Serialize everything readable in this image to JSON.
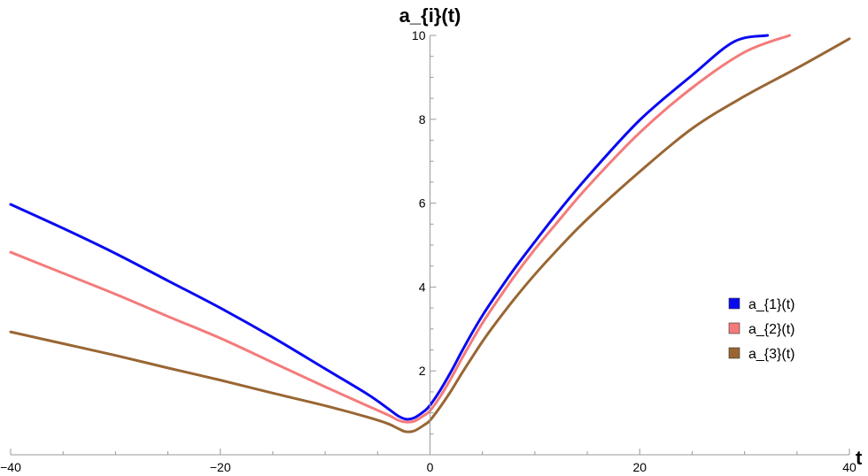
{
  "chart_data": {
    "type": "line",
    "title": "",
    "xlabel": "t",
    "ylabel": "a_{i}(t)",
    "xlim": [
      -40,
      40
    ],
    "ylim": [
      0,
      10
    ],
    "x_ticks": [
      -40,
      -20,
      0,
      20,
      40
    ],
    "x_tick_labels": [
      "−40",
      "−20",
      "0",
      "20",
      "40"
    ],
    "y_ticks": [
      2,
      4,
      6,
      8,
      10
    ],
    "y_tick_labels": [
      "2",
      "4",
      "6",
      "8",
      "10"
    ],
    "grid": false,
    "legend_position": "right",
    "series": [
      {
        "name": "a_{1}(t)",
        "color": "#0a0af0",
        "points": [
          [
            -40,
            5.97
          ],
          [
            -35,
            5.4
          ],
          [
            -30,
            4.8
          ],
          [
            -25,
            4.15
          ],
          [
            -20,
            3.5
          ],
          [
            -15,
            2.8
          ],
          [
            -10,
            2.05
          ],
          [
            -6,
            1.45
          ],
          [
            -4,
            1.1
          ],
          [
            -3,
            0.92
          ],
          [
            -2.3,
            0.85
          ],
          [
            -1.5,
            0.88
          ],
          [
            -0.5,
            1.05
          ],
          [
            0,
            1.18
          ],
          [
            1,
            1.55
          ],
          [
            2,
            1.98
          ],
          [
            3,
            2.45
          ],
          [
            4,
            2.9
          ],
          [
            5,
            3.32
          ],
          [
            6,
            3.7
          ],
          [
            8,
            4.42
          ],
          [
            10,
            5.08
          ],
          [
            12,
            5.72
          ],
          [
            15,
            6.62
          ],
          [
            20,
            7.98
          ],
          [
            25,
            9.05
          ],
          [
            29,
            9.85
          ],
          [
            32.2,
            10.0
          ]
        ]
      },
      {
        "name": "a_{2}(t)",
        "color": "#f47b7b",
        "points": [
          [
            -40,
            4.83
          ],
          [
            -35,
            4.33
          ],
          [
            -30,
            3.83
          ],
          [
            -25,
            3.3
          ],
          [
            -20,
            2.78
          ],
          [
            -15,
            2.2
          ],
          [
            -10,
            1.62
          ],
          [
            -6,
            1.17
          ],
          [
            -4,
            0.95
          ],
          [
            -3,
            0.82
          ],
          [
            -2.3,
            0.78
          ],
          [
            -1.5,
            0.8
          ],
          [
            -0.5,
            0.95
          ],
          [
            0,
            1.05
          ],
          [
            1,
            1.4
          ],
          [
            2,
            1.82
          ],
          [
            3,
            2.28
          ],
          [
            4,
            2.72
          ],
          [
            5,
            3.14
          ],
          [
            6,
            3.52
          ],
          [
            8,
            4.24
          ],
          [
            10,
            4.9
          ],
          [
            12,
            5.5
          ],
          [
            15,
            6.38
          ],
          [
            20,
            7.68
          ],
          [
            25,
            8.75
          ],
          [
            30,
            9.6
          ],
          [
            34.3,
            10.0
          ]
        ]
      },
      {
        "name": "a_{3}(t)",
        "color": "#996633",
        "points": [
          [
            -40,
            2.93
          ],
          [
            -35,
            2.65
          ],
          [
            -30,
            2.37
          ],
          [
            -25,
            2.07
          ],
          [
            -20,
            1.78
          ],
          [
            -15,
            1.47
          ],
          [
            -10,
            1.17
          ],
          [
            -6,
            0.9
          ],
          [
            -4,
            0.74
          ],
          [
            -3,
            0.62
          ],
          [
            -2.3,
            0.55
          ],
          [
            -1.5,
            0.57
          ],
          [
            -0.5,
            0.72
          ],
          [
            0,
            0.82
          ],
          [
            1,
            1.15
          ],
          [
            2,
            1.52
          ],
          [
            3,
            1.93
          ],
          [
            4,
            2.32
          ],
          [
            5,
            2.7
          ],
          [
            6,
            3.05
          ],
          [
            8,
            3.7
          ],
          [
            10,
            4.3
          ],
          [
            12,
            4.85
          ],
          [
            15,
            5.62
          ],
          [
            20,
            6.75
          ],
          [
            25,
            7.78
          ],
          [
            30,
            8.55
          ],
          [
            35,
            9.22
          ],
          [
            40,
            9.92
          ]
        ]
      }
    ]
  }
}
